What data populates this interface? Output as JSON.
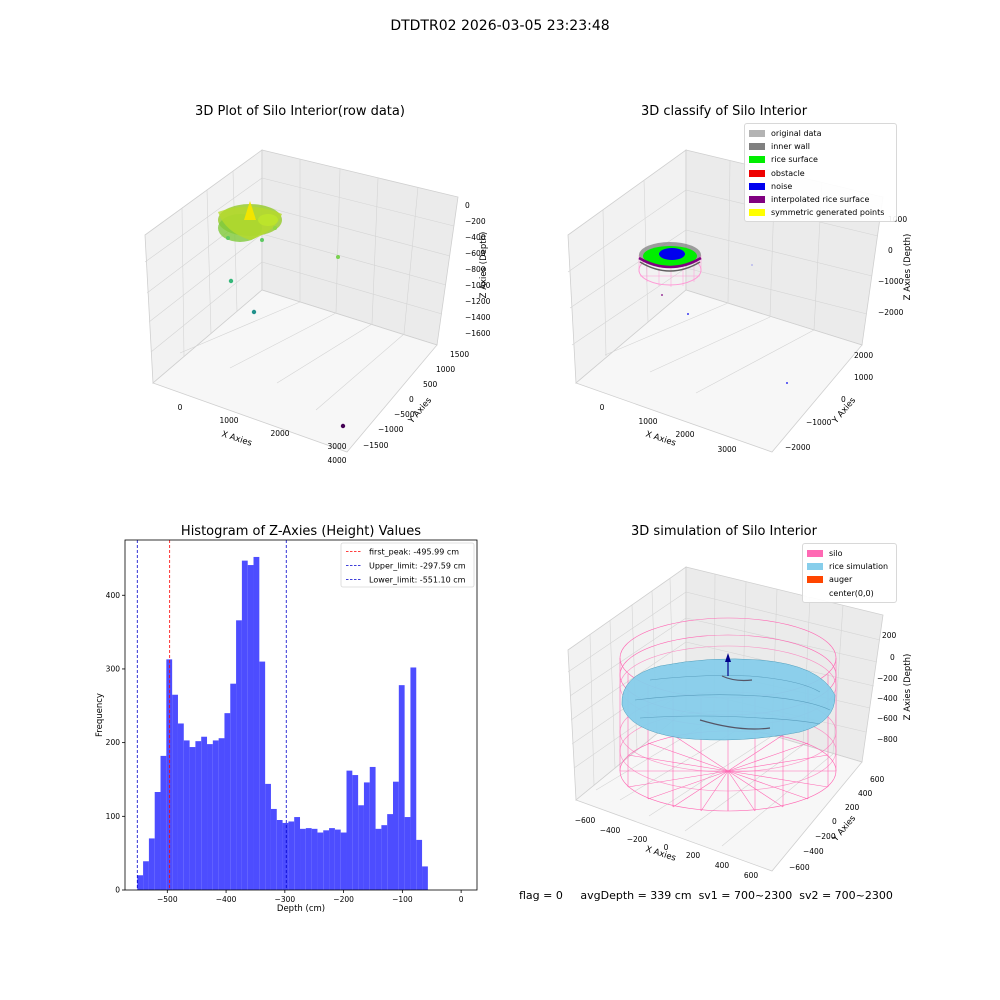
{
  "suptitle": "DTDTR02 2026-03-05 23:23:48",
  "panels": {
    "raw": {
      "title": "3D Plot of Silo Interior(row data)",
      "xlabel": "X Axies",
      "ylabel": "Y Axies",
      "zlabel": "Z Axies (Depth)",
      "xticks": [
        "0",
        "1000",
        "2000",
        "3000",
        "4000"
      ],
      "yticks": [
        "1500",
        "1000",
        "500",
        "0",
        "−500",
        "−1000",
        "−1500"
      ],
      "zticks": [
        "0",
        "−200",
        "−400",
        "−600",
        "−800",
        "−1000",
        "−1200",
        "−1400",
        "−1600"
      ]
    },
    "classify": {
      "title": "3D classify of Silo Interior",
      "xlabel": "X Axies",
      "ylabel": "Y Axies",
      "zlabel": "Z Axies (Depth)",
      "xticks": [
        "0",
        "1000",
        "2000",
        "3000"
      ],
      "yticks": [
        "2000",
        "1000",
        "0",
        "−1000",
        "−2000"
      ],
      "zticks": [
        "1000",
        "0",
        "−1000",
        "−2000"
      ],
      "legend": [
        {
          "label": "original data",
          "color": "#b3b3b3"
        },
        {
          "label": "inner wall",
          "color": "#808080"
        },
        {
          "label": "rice surface",
          "color": "#00ee00"
        },
        {
          "label": "obstacle",
          "color": "#ee0000"
        },
        {
          "label": "noise",
          "color": "#0000ee"
        },
        {
          "label": "interpolated rice surface",
          "color": "#800080"
        },
        {
          "label": "symmetric generated points",
          "color": "#ffff00"
        }
      ]
    },
    "simulation": {
      "title": "3D simulation of Silo Interior",
      "xlabel": "X Axies",
      "ylabel": "Y Axies",
      "zlabel": "Z Axies (Depth)",
      "xticks": [
        "−600",
        "−400",
        "−200",
        "0",
        "200",
        "400",
        "600"
      ],
      "yticks": [
        "600",
        "400",
        "200",
        "0",
        "−200",
        "−400",
        "−600"
      ],
      "zticks": [
        "200",
        "0",
        "−200",
        "−400",
        "−600",
        "−800"
      ],
      "legend": [
        {
          "label": "silo",
          "color": "#ff69b4"
        },
        {
          "label": "rice simulation",
          "color": "#87ceeb"
        },
        {
          "label": "auger",
          "color": "#ff4500"
        },
        {
          "label": "center(0,0)",
          "color": "#ffffff"
        }
      ]
    }
  },
  "chart_data": {
    "type": "bar",
    "title": "Histogram of Z-Axies (Height) Values",
    "xlabel": "Depth (cm)",
    "ylabel": "Frequency",
    "xlim": [
      -572,
      27
    ],
    "ylim": [
      0,
      475
    ],
    "xticks": [
      "−500",
      "−400",
      "−300",
      "−200",
      "−100",
      "0"
    ],
    "yticks": [
      "0",
      "100",
      "200",
      "300",
      "400"
    ],
    "bin_start": -551.1,
    "bin_width": 9.89,
    "color": "#4d4dff",
    "values": [
      20,
      39,
      70,
      133,
      182,
      313,
      265,
      226,
      203,
      194,
      202,
      208,
      198,
      203,
      206,
      240,
      280,
      366,
      447,
      441,
      452,
      310,
      144,
      110,
      95,
      91,
      93,
      99,
      83,
      84,
      83,
      78,
      81,
      84,
      82,
      78,
      162,
      156,
      115,
      146,
      167,
      83,
      88,
      103,
      147,
      278,
      99,
      302,
      68,
      32
    ],
    "lines": [
      {
        "label": "first_peak: -495.99 cm",
        "value": -495.99,
        "color": "#ff0000"
      },
      {
        "label": "Upper_limit: -297.59 cm",
        "value": -297.59,
        "color": "#0000cc"
      },
      {
        "label": "Lower_limit: -551.10 cm",
        "value": -551.1,
        "color": "#0000cc"
      }
    ],
    "legend_position": "top-right"
  },
  "footer": {
    "flag": "flag = 0",
    "avg": "avgDepth = 339 cm",
    "sv1": "sv1 = 700~2300",
    "sv2": "sv2 = 700~2300"
  }
}
